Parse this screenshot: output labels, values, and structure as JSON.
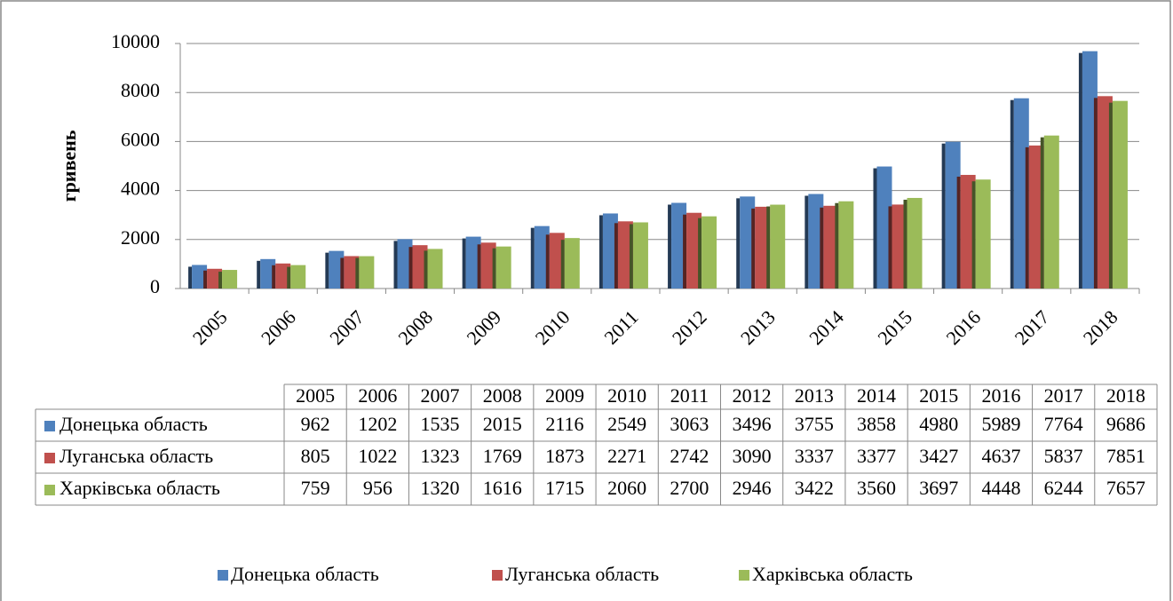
{
  "chart_data": {
    "type": "bar",
    "y_label": "гривень",
    "categories": [
      "2005",
      "2006",
      "2007",
      "2008",
      "2009",
      "2010",
      "2011",
      "2012",
      "2013",
      "2014",
      "2015",
      "2016",
      "2017",
      "2018"
    ],
    "series": [
      {
        "name": "Донецька область",
        "color": "#4f81bd",
        "values": [
          962,
          1202,
          1535,
          2015,
          2116,
          2549,
          3063,
          3496,
          3755,
          3858,
          4980,
          5989,
          7764,
          9686
        ]
      },
      {
        "name": "Луганська область",
        "color": "#c0504d",
        "values": [
          805,
          1022,
          1323,
          1769,
          1873,
          2271,
          2742,
          3090,
          3337,
          3377,
          3427,
          4637,
          5837,
          7851
        ]
      },
      {
        "name": "Харківська область",
        "color": "#9bbb59",
        "values": [
          759,
          956,
          1320,
          1616,
          1715,
          2060,
          2700,
          2946,
          3422,
          3560,
          3697,
          4448,
          6244,
          7657
        ]
      }
    ],
    "ylim": [
      0,
      10000
    ],
    "yticks": [
      0,
      2000,
      4000,
      6000,
      8000,
      10000
    ],
    "grid": true,
    "legend": "bottom"
  }
}
